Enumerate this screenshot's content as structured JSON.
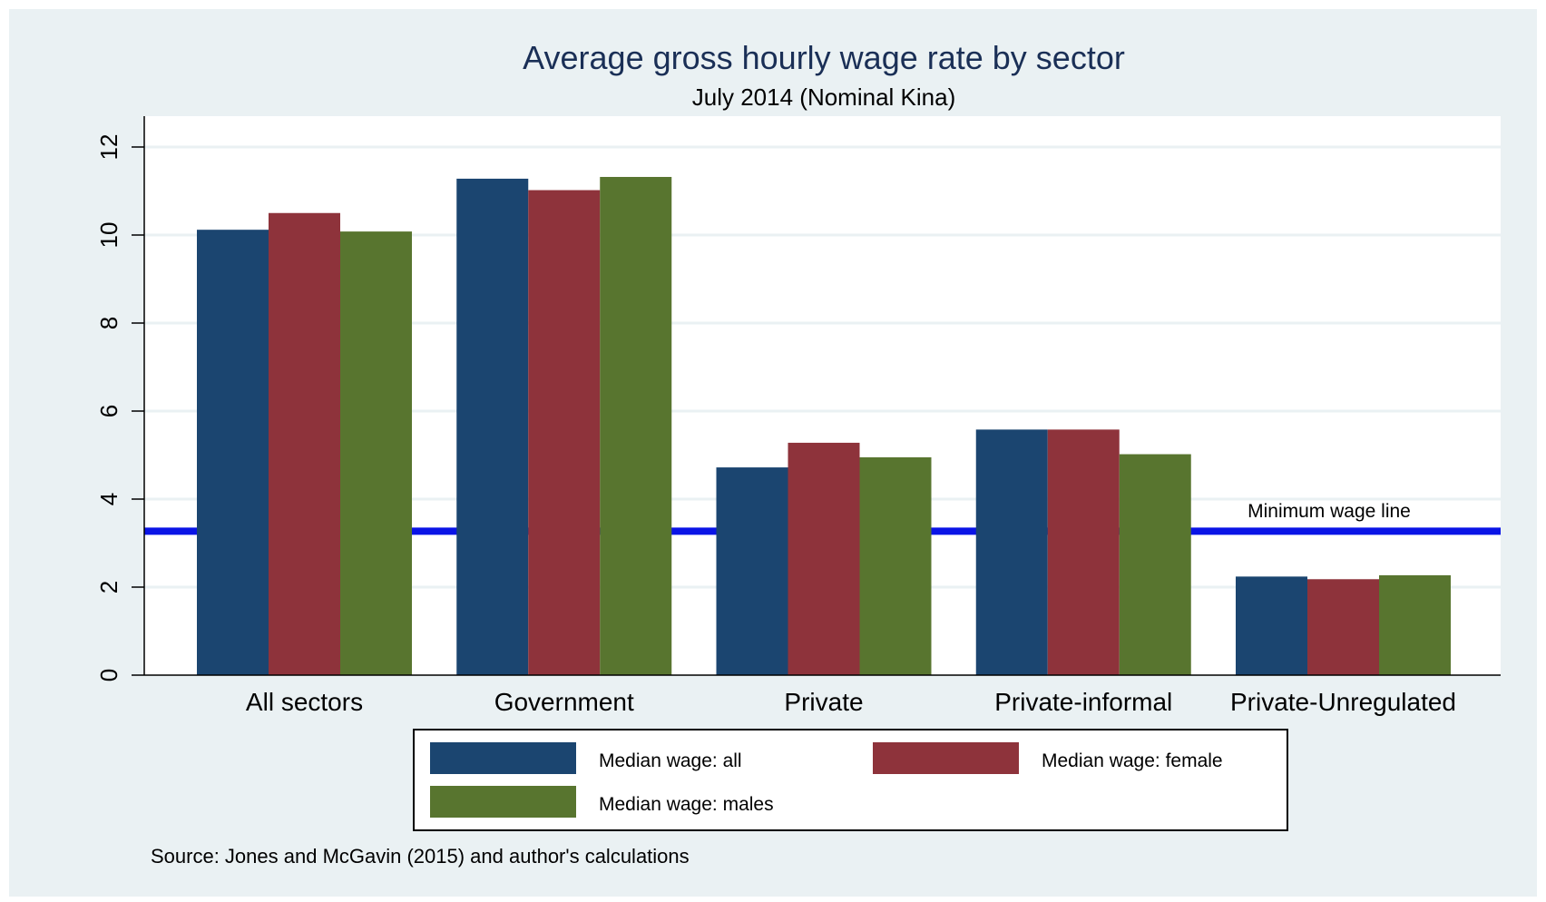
{
  "chart_data": {
    "type": "bar",
    "title": "Average gross hourly wage rate by sector",
    "subtitle": "July 2014 (Nominal Kina)",
    "xlabel": "",
    "ylabel": "",
    "categories": [
      "All sectors",
      "Government",
      "Private",
      "Private-informal",
      "Private-Unregulated"
    ],
    "series": [
      {
        "name": "Median wage: all",
        "color": "#1b4570",
        "values": [
          10.12,
          11.28,
          4.72,
          5.58,
          2.24
        ]
      },
      {
        "name": "Median wage: female",
        "color": "#8e333b",
        "values": [
          10.5,
          11.02,
          5.28,
          5.58,
          2.18
        ]
      },
      {
        "name": "Median wage: males",
        "color": "#58752f",
        "values": [
          10.08,
          11.32,
          4.95,
          5.02,
          2.27
        ]
      }
    ],
    "ylim": [
      0,
      12
    ],
    "yticks": [
      0,
      2,
      4,
      6,
      8,
      10,
      12
    ],
    "grid": true,
    "legend": "bottom",
    "reference_line": {
      "value": 3.27,
      "label": "Minimum wage line",
      "color": "#0a14e6"
    },
    "note": "Source: Jones and McGavin (2015) and author's calculations"
  },
  "colors": {
    "outer_background": "#eaf1f3",
    "plot_background": "#ffffff",
    "gridline": "#eaf1f3",
    "title": "#1a2f56"
  }
}
